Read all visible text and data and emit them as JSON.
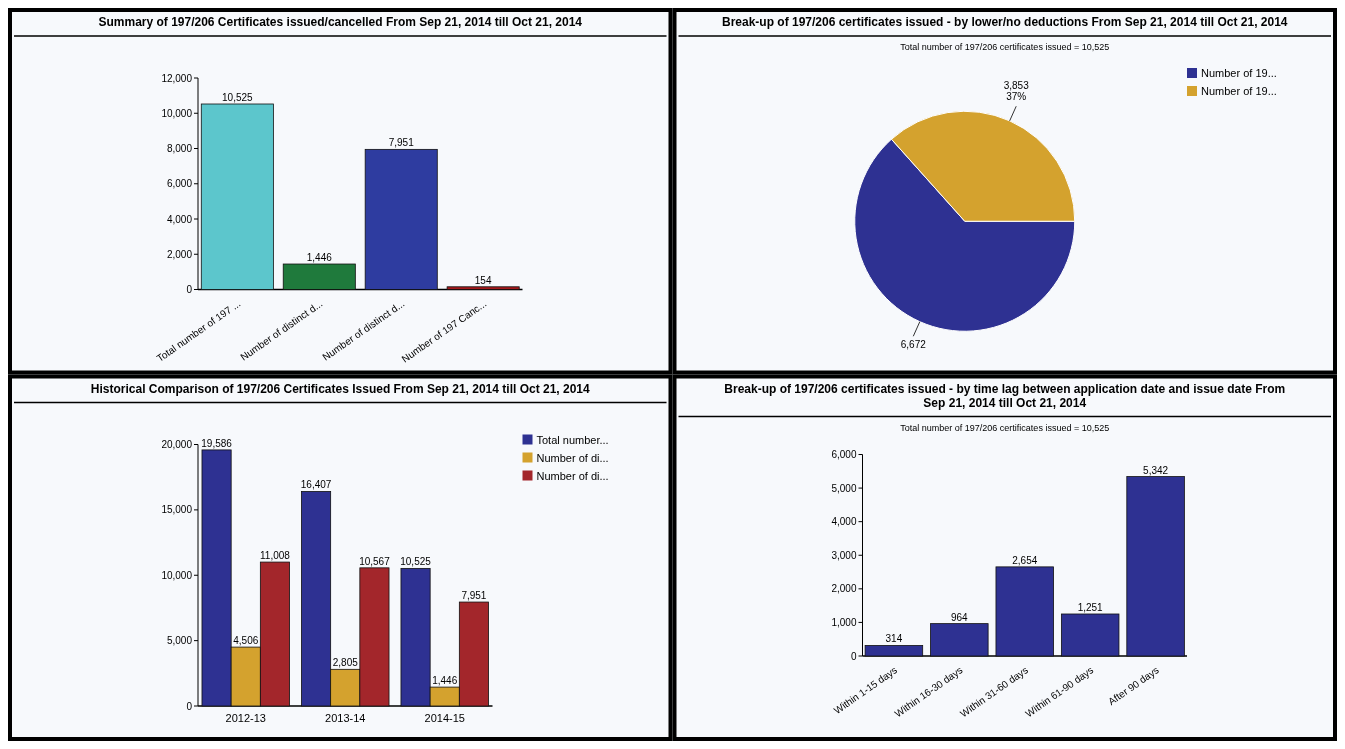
{
  "chart_data": [
    {
      "type": "bar",
      "title": "Summary of 197/206 Certificates issued/cancelled From Sep 21, 2014 till Oct 21, 2014",
      "categories": [
        "Total number of 197 ...",
        "Number of distinct d...",
        "Number of distinct d...",
        "Number of 197 Canc..."
      ],
      "values": [
        10525,
        1446,
        7951,
        154
      ],
      "value_labels": [
        "10,525",
        "1,446",
        "7,951",
        "154"
      ],
      "colors": [
        "#5cc6cc",
        "#1f7a3c",
        "#2e3ca0",
        "#a3191b"
      ],
      "ylim": [
        0,
        12000
      ],
      "yticks": [
        {
          "value": 0,
          "label": "0"
        },
        {
          "value": 2000,
          "label": "2,000"
        },
        {
          "value": 4000,
          "label": "4,000"
        },
        {
          "value": 6000,
          "label": "6,000"
        },
        {
          "value": 8000,
          "label": "8,000"
        },
        {
          "value": 10000,
          "label": "10,000"
        },
        {
          "value": 12000,
          "label": "12,000"
        }
      ]
    },
    {
      "type": "pie",
      "title": "Break-up of 197/206 certificates issued - by lower/no deductions From Sep 21, 2014 till Oct 21, 2014",
      "subtitle": "Total number of 197/206 certificates issued = 10,525",
      "categories": [
        "Number of 19...",
        "Number of 19..."
      ],
      "values": [
        6672,
        3853
      ],
      "colors": [
        "#2e3192",
        "#d4a22e"
      ],
      "value_labels": [
        "6,672",
        "3,853\n37%"
      ],
      "legend": "top right"
    },
    {
      "type": "bar",
      "title": "Historical Comparison of 197/206 Certificates Issued From Sep 21, 2014 till Oct 21, 2014",
      "categories": [
        "2012-13",
        "2013-14",
        "2014-15"
      ],
      "series": [
        {
          "name": "Total number...",
          "color": "#2e3192",
          "values": [
            19586,
            16407,
            10525
          ],
          "value_labels": [
            "19,586",
            "16,407",
            "10,525"
          ]
        },
        {
          "name": "Number of di...",
          "color": "#d4a22e",
          "values": [
            4506,
            2805,
            1446
          ],
          "value_labels": [
            "4,506",
            "2,805",
            "1,446"
          ]
        },
        {
          "name": "Number of di...",
          "color": "#a3262b",
          "values": [
            11008,
            10567,
            7951
          ],
          "value_labels": [
            "11,008",
            "10,567",
            "7,951"
          ]
        }
      ],
      "ylim": [
        0,
        20000
      ],
      "yticks": [
        {
          "value": 0,
          "label": "0"
        },
        {
          "value": 5000,
          "label": "5,000"
        },
        {
          "value": 10000,
          "label": "10,000"
        },
        {
          "value": 15000,
          "label": "15,000"
        },
        {
          "value": 20000,
          "label": "20,000"
        }
      ],
      "legend": "top right"
    },
    {
      "type": "bar",
      "title": "Break-up of 197/206 certificates issued - by time lag between application date and issue date From Sep 21, 2014 till Oct 21, 2014",
      "subtitle": "Total number of 197/206 certificates issued = 10,525",
      "categories": [
        "Within 1-15 days",
        "Within 16-30 days",
        "Within 31-60 days",
        "Within 61-90 days",
        "After 90 days"
      ],
      "values": [
        314,
        964,
        2654,
        1251,
        5342
      ],
      "value_labels": [
        "314",
        "964",
        "2,654",
        "1,251",
        "5,342"
      ],
      "colors": [
        "#2e3192",
        "#2e3192",
        "#2e3192",
        "#2e3192",
        "#2e3192"
      ],
      "ylim": [
        0,
        6000
      ],
      "yticks": [
        {
          "value": 0,
          "label": "0"
        },
        {
          "value": 1000,
          "label": "1,000"
        },
        {
          "value": 2000,
          "label": "2,000"
        },
        {
          "value": 3000,
          "label": "3,000"
        },
        {
          "value": 4000,
          "label": "4,000"
        },
        {
          "value": 5000,
          "label": "5,000"
        },
        {
          "value": 6000,
          "label": "6,000"
        }
      ]
    }
  ]
}
